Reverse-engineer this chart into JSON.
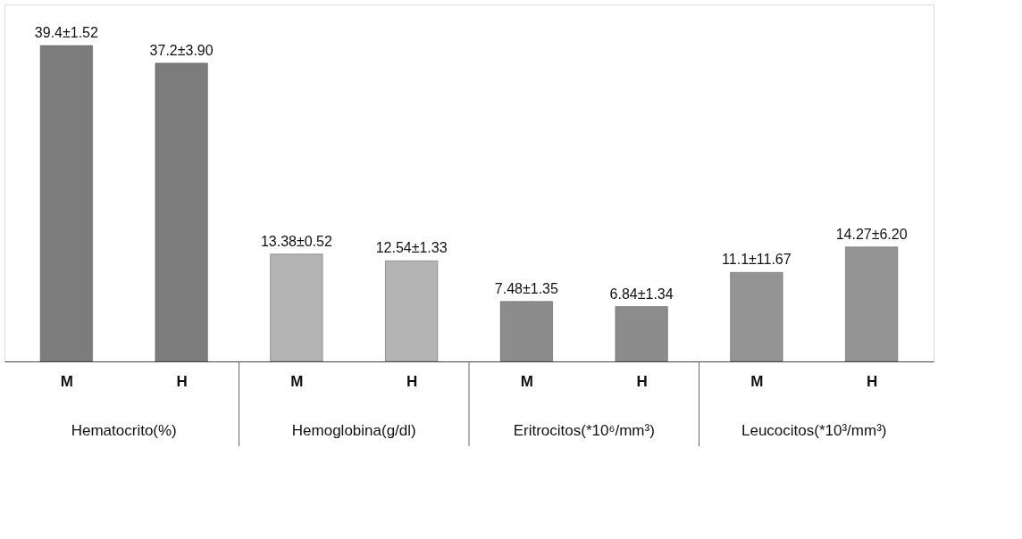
{
  "chart_data": {
    "type": "bar",
    "categories": [
      "M",
      "H",
      "M",
      "H",
      "M",
      "H",
      "M",
      "H"
    ],
    "values": [
      39.4,
      37.2,
      13.38,
      12.54,
      7.48,
      6.84,
      11.1,
      14.27
    ],
    "colors": [
      "#7c7c7c",
      "#7c7c7c",
      "#b4b4b4",
      "#b4b4b4",
      "#8c8c8c",
      "#8c8c8c",
      "#949494",
      "#949494"
    ],
    "value_labels": [
      "39.4±1.52",
      "37.2±3.90",
      "13.38±0.52",
      "12.54±1.33",
      "7.48±1.35",
      "6.84±1.34",
      "11.1±11.67",
      "14.27±6.20"
    ],
    "annotations": [
      "Hematocrito(%)",
      "Hemoglobina(g/dl)",
      "Eritrocitos(*10⁶/mm³)",
      "Leucocitos(*10³/mm³)"
    ],
    "stacked": false
  }
}
